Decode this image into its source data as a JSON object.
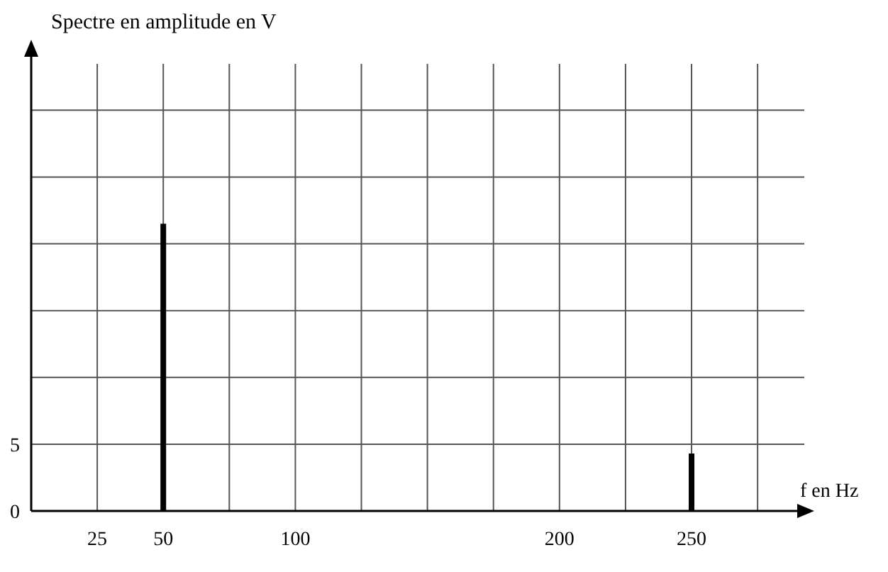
{
  "chart_data": {
    "type": "bar",
    "ylabel": "Spectre en amplitude en V",
    "xlabel": "f en Hz",
    "x": [
      50,
      250
    ],
    "values": [
      21.5,
      4.3
    ],
    "color": "#000000",
    "xlim": [
      0,
      290
    ],
    "ylim": [
      0,
      34
    ],
    "xticks": [
      {
        "value": 0,
        "label": null
      },
      25,
      50,
      {
        "value": 75,
        "label": null
      },
      100,
      {
        "value": 125,
        "label": null
      },
      {
        "value": 150,
        "label": null
      },
      {
        "value": 175,
        "label": null
      },
      200,
      {
        "value": 225,
        "label": null
      },
      250,
      {
        "value": 275,
        "label": null
      }
    ],
    "yticks": [
      0,
      5,
      {
        "value": 10,
        "label": null
      },
      {
        "value": 15,
        "label": null
      },
      {
        "value": 20,
        "label": null
      },
      {
        "value": 25,
        "label": null
      },
      {
        "value": 30,
        "label": null
      }
    ],
    "grid": true
  }
}
